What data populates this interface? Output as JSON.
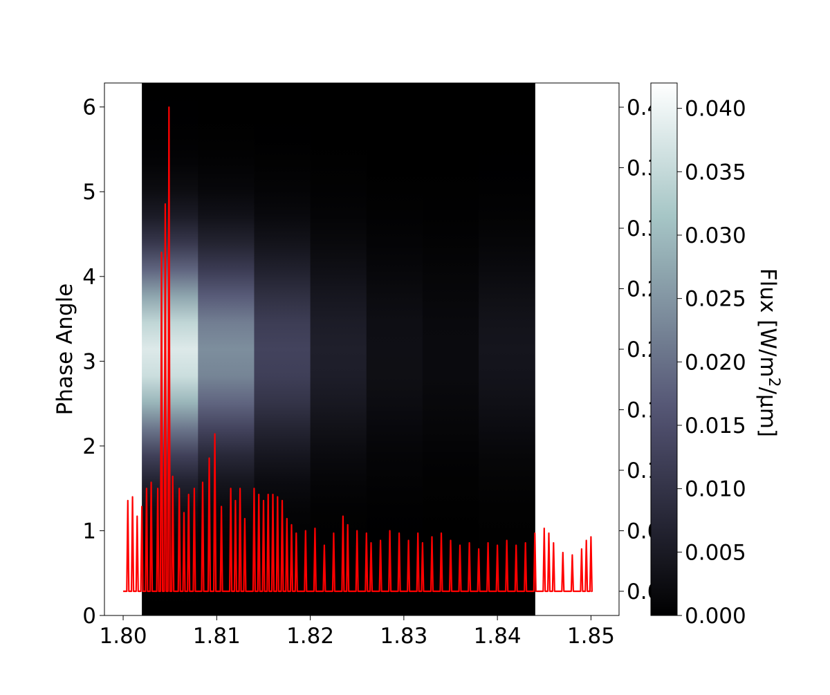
{
  "chart_data": {
    "type": "heatmap",
    "title": "",
    "xlabel": "",
    "ylabel": "Phase Angle",
    "colorbar_label": "Flux [W/m²/μm]",
    "colormap": "bone",
    "xlim": [
      1.798,
      1.853
    ],
    "ylim": [
      0,
      6.283
    ],
    "x_ticks": [
      "1.80",
      "1.81",
      "1.82",
      "1.83",
      "1.84",
      "1.85"
    ],
    "y_ticks": [
      "0",
      "1",
      "2",
      "3",
      "4",
      "5",
      "6"
    ],
    "right_axis_ticks": [
      "0.00",
      "0.05",
      "0.10",
      "0.15",
      "0.20",
      "0.25",
      "0.30",
      "0.35",
      "0.40"
    ],
    "right_axis_ylim": [
      -0.02,
      0.42
    ],
    "colorbar_ticks": [
      "0.000",
      "0.005",
      "0.010",
      "0.015",
      "0.020",
      "0.025",
      "0.030",
      "0.035",
      "0.040"
    ],
    "colorbar_range": [
      0,
      0.042
    ],
    "heatmap": {
      "x_extent": [
        1.802,
        1.844
      ],
      "bands": [
        {
          "x0": 1.802,
          "x1": 1.808,
          "peak": 0.038
        },
        {
          "x0": 1.808,
          "x1": 1.814,
          "peak": 0.024
        },
        {
          "x0": 1.814,
          "x1": 1.82,
          "peak": 0.013
        },
        {
          "x0": 1.82,
          "x1": 1.826,
          "peak": 0.006
        },
        {
          "x0": 1.826,
          "x1": 1.832,
          "peak": 0.003
        },
        {
          "x0": 1.832,
          "x1": 1.838,
          "peak": 0.002
        },
        {
          "x0": 1.838,
          "x1": 1.844,
          "peak": 0.004
        }
      ],
      "peak_phase": 3.1,
      "phase_width": 1.15
    },
    "series": [
      {
        "color": "#ff0000",
        "axis": "right",
        "baseline": 0.0,
        "x_range": [
          1.8,
          1.85
        ],
        "peaks": [
          {
            "x": 1.8005,
            "y": 0.075
          },
          {
            "x": 1.801,
            "y": 0.078
          },
          {
            "x": 1.8015,
            "y": 0.062
          },
          {
            "x": 1.802,
            "y": 0.07
          },
          {
            "x": 1.8025,
            "y": 0.085
          },
          {
            "x": 1.803,
            "y": 0.09
          },
          {
            "x": 1.8037,
            "y": 0.085
          },
          {
            "x": 1.8041,
            "y": 0.28
          },
          {
            "x": 1.8045,
            "y": 0.32
          },
          {
            "x": 1.8049,
            "y": 0.4
          },
          {
            "x": 1.8053,
            "y": 0.095
          },
          {
            "x": 1.806,
            "y": 0.085
          },
          {
            "x": 1.8065,
            "y": 0.065
          },
          {
            "x": 1.807,
            "y": 0.08
          },
          {
            "x": 1.8076,
            "y": 0.085
          },
          {
            "x": 1.8085,
            "y": 0.09
          },
          {
            "x": 1.8092,
            "y": 0.11
          },
          {
            "x": 1.8098,
            "y": 0.13
          },
          {
            "x": 1.8105,
            "y": 0.07
          },
          {
            "x": 1.8115,
            "y": 0.085
          },
          {
            "x": 1.812,
            "y": 0.075
          },
          {
            "x": 1.8125,
            "y": 0.085
          },
          {
            "x": 1.813,
            "y": 0.06
          },
          {
            "x": 1.814,
            "y": 0.085
          },
          {
            "x": 1.8145,
            "y": 0.08
          },
          {
            "x": 1.815,
            "y": 0.075
          },
          {
            "x": 1.8155,
            "y": 0.08
          },
          {
            "x": 1.816,
            "y": 0.08
          },
          {
            "x": 1.8165,
            "y": 0.078
          },
          {
            "x": 1.817,
            "y": 0.075
          },
          {
            "x": 1.8175,
            "y": 0.06
          },
          {
            "x": 1.818,
            "y": 0.055
          },
          {
            "x": 1.8185,
            "y": 0.048
          },
          {
            "x": 1.8195,
            "y": 0.05
          },
          {
            "x": 1.8205,
            "y": 0.052
          },
          {
            "x": 1.8215,
            "y": 0.038
          },
          {
            "x": 1.8225,
            "y": 0.048
          },
          {
            "x": 1.8235,
            "y": 0.062
          },
          {
            "x": 1.824,
            "y": 0.055
          },
          {
            "x": 1.825,
            "y": 0.05
          },
          {
            "x": 1.826,
            "y": 0.048
          },
          {
            "x": 1.8265,
            "y": 0.04
          },
          {
            "x": 1.8275,
            "y": 0.042
          },
          {
            "x": 1.8285,
            "y": 0.05
          },
          {
            "x": 1.8295,
            "y": 0.048
          },
          {
            "x": 1.8305,
            "y": 0.042
          },
          {
            "x": 1.8315,
            "y": 0.048
          },
          {
            "x": 1.832,
            "y": 0.04
          },
          {
            "x": 1.833,
            "y": 0.045
          },
          {
            "x": 1.834,
            "y": 0.048
          },
          {
            "x": 1.835,
            "y": 0.042
          },
          {
            "x": 1.836,
            "y": 0.038
          },
          {
            "x": 1.837,
            "y": 0.04
          },
          {
            "x": 1.838,
            "y": 0.035
          },
          {
            "x": 1.839,
            "y": 0.04
          },
          {
            "x": 1.84,
            "y": 0.038
          },
          {
            "x": 1.841,
            "y": 0.042
          },
          {
            "x": 1.842,
            "y": 0.038
          },
          {
            "x": 1.843,
            "y": 0.04
          },
          {
            "x": 1.844,
            "y": 0.048
          },
          {
            "x": 1.845,
            "y": 0.052
          },
          {
            "x": 1.8455,
            "y": 0.048
          },
          {
            "x": 1.846,
            "y": 0.04
          },
          {
            "x": 1.847,
            "y": 0.032
          },
          {
            "x": 1.848,
            "y": 0.03
          },
          {
            "x": 1.849,
            "y": 0.035
          },
          {
            "x": 1.8495,
            "y": 0.042
          },
          {
            "x": 1.85,
            "y": 0.045
          }
        ]
      }
    ],
    "grid": false,
    "legend": "none"
  }
}
